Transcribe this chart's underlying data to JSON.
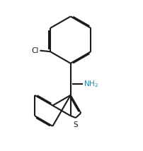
{
  "background_color": "#ffffff",
  "line_color": "#1a1a1a",
  "nh2_color": "#1a8fb0",
  "s_color": "#1a1a1a",
  "cl_color": "#1a1a1a",
  "line_width": 1.5,
  "figsize": [
    2.02,
    2.14
  ],
  "dpi": 100
}
